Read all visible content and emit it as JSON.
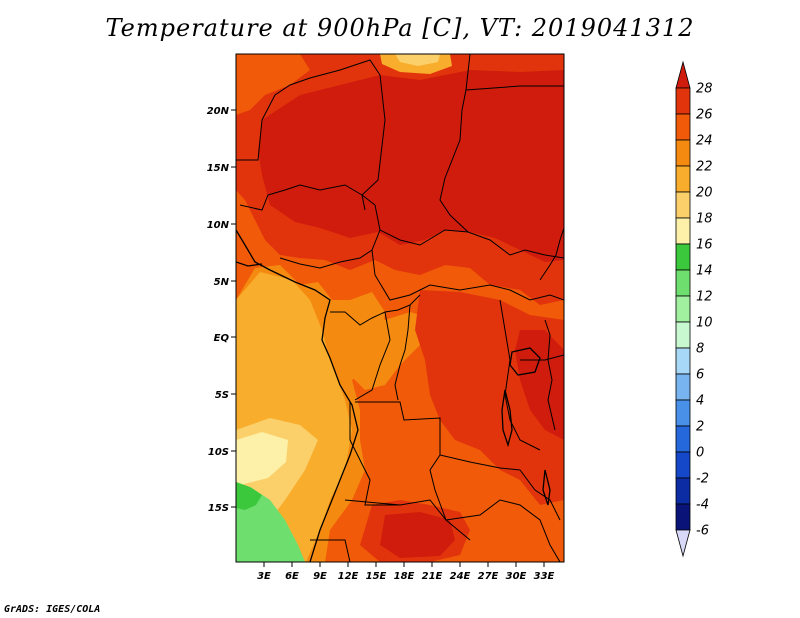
{
  "title": "Temperature at 900hPa [C], VT: 2019041312",
  "footer": "GrADS: IGES/COLA",
  "lat_labels": [
    "20N",
    "15N",
    "10N",
    "5N",
    "EQ",
    "5S",
    "10S",
    "15S"
  ],
  "lon_labels": [
    "3E",
    "6E",
    "9E",
    "12E",
    "15E",
    "18E",
    "21E",
    "24E",
    "27E",
    "30E",
    "33E"
  ],
  "colorbar": {
    "labels": [
      "28",
      "26",
      "24",
      "22",
      "20",
      "18",
      "16",
      "14",
      "12",
      "10",
      "8",
      "6",
      "4",
      "2",
      "0",
      "-2",
      "-4",
      "-6"
    ],
    "colors": [
      "#d01c0c",
      "#e2340c",
      "#f05a08",
      "#f58a10",
      "#f8ad2c",
      "#fbd06a",
      "#fdf0a8",
      "#3cc83c",
      "#6ede6e",
      "#a0f0a0",
      "#c8f8d0",
      "#a8d8f8",
      "#78b4f0",
      "#4890e8",
      "#2468dc",
      "#1448c8",
      "#0c2ca4",
      "#0a1478",
      "#d8d8f8"
    ]
  },
  "map_colors": {
    "c28": "#d01c0c",
    "c26": "#e2340c",
    "c24": "#f05a08",
    "c22": "#f58a10",
    "c20": "#f8ad2c",
    "c18": "#fbd06a",
    "c16": "#fdf0a8",
    "c14": "#3cc83c",
    "c12": "#6ede6e"
  }
}
